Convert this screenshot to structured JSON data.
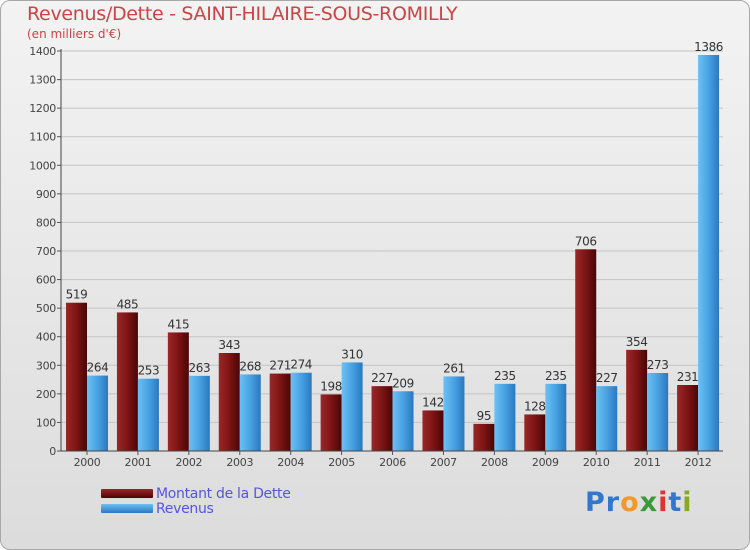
{
  "title": "Revenus/Dette - SAINT-HILAIRE-SOUS-ROMILLY",
  "unit_label": "(en milliers d'€)",
  "logo": {
    "text": "Proxiti",
    "letters": [
      "P",
      "r",
      "o",
      "x",
      "i",
      "t",
      "i"
    ],
    "colors": [
      "#3377cc",
      "#3377cc",
      "#f19a2c",
      "#3a9a3a",
      "#dd3333",
      "#3377cc",
      "#88aa22"
    ]
  },
  "chart_data": {
    "type": "bar",
    "title": "Revenus/Dette - SAINT-HILAIRE-SOUS-ROMILLY",
    "ylabel": "(en milliers d'€)",
    "xlabel": "",
    "ylim": [
      0,
      1400
    ],
    "yticks": [
      0,
      100,
      200,
      300,
      400,
      500,
      600,
      700,
      800,
      900,
      1000,
      1100,
      1200,
      1300,
      1400
    ],
    "categories": [
      "2000",
      "2001",
      "2002",
      "2003",
      "2004",
      "2005",
      "2006",
      "2007",
      "2008",
      "2009",
      "2010",
      "2011",
      "2012"
    ],
    "series": [
      {
        "name": "Montant de la Dette",
        "color": "#7a1010",
        "values": [
          519,
          485,
          415,
          343,
          271,
          198,
          227,
          142,
          95,
          128,
          706,
          354,
          231
        ]
      },
      {
        "name": "Revenus",
        "color": "#4aa3e3",
        "values": [
          264,
          253,
          263,
          268,
          274,
          310,
          209,
          261,
          235,
          235,
          227,
          273,
          1386
        ]
      }
    ],
    "legend_position": "bottom-left"
  }
}
